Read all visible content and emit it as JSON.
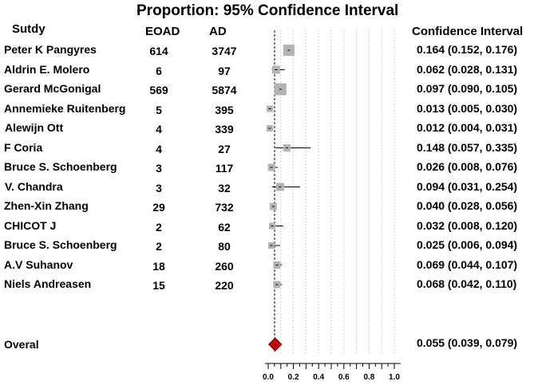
{
  "chart_data": {
    "type": "forest",
    "title": "Proportion: 95% Confidence Interval",
    "columns": {
      "study": "Sutdy",
      "eoad": "EOAD",
      "ad": "AD",
      "ci": "Confidence Interval"
    },
    "x_ticks": [
      "0.0",
      "0.2",
      "0.4",
      "0.6",
      "0.8",
      "1.0"
    ],
    "xlim": [
      0,
      1.0
    ],
    "colors": {
      "box": "#b3b3b3",
      "overall": "#cc0000",
      "ref_line": "#000000"
    },
    "studies": [
      {
        "name": "Peter K Pangyres",
        "eoad": "614",
        "ad": "3747",
        "est": 0.164,
        "lo": 0.152,
        "hi": 0.176,
        "ci_text": "0.164 (0.152, 0.176)"
      },
      {
        "name": "Aldrin E. Molero",
        "eoad": "6",
        "ad": "97",
        "est": 0.062,
        "lo": 0.028,
        "hi": 0.131,
        "ci_text": "0.062 (0.028, 0.131)"
      },
      {
        "name": "Gerard McGonigal",
        "eoad": "569",
        "ad": "5874",
        "est": 0.097,
        "lo": 0.09,
        "hi": 0.105,
        "ci_text": "0.097 (0.090, 0.105)"
      },
      {
        "name": "Annemieke Ruitenberg",
        "eoad": "5",
        "ad": "395",
        "est": 0.013,
        "lo": 0.005,
        "hi": 0.03,
        "ci_text": "0.013 (0.005, 0.030)"
      },
      {
        "name": "Alewijn Ott",
        "eoad": "4",
        "ad": "339",
        "est": 0.012,
        "lo": 0.004,
        "hi": 0.031,
        "ci_text": "0.012 (0.004, 0.031)"
      },
      {
        "name": "F Coria",
        "eoad": "4",
        "ad": "27",
        "est": 0.148,
        "lo": 0.057,
        "hi": 0.335,
        "ci_text": "0.148 (0.057, 0.335)"
      },
      {
        "name": "Bruce S. Schoenberg",
        "eoad": "3",
        "ad": "117",
        "est": 0.026,
        "lo": 0.008,
        "hi": 0.076,
        "ci_text": "0.026 (0.008, 0.076)"
      },
      {
        "name": "V. Chandra",
        "eoad": "3",
        "ad": "32",
        "est": 0.094,
        "lo": 0.031,
        "hi": 0.254,
        "ci_text": "0.094 (0.031, 0.254)"
      },
      {
        "name": "Zhen-Xin Zhang",
        "eoad": "29",
        "ad": "732",
        "est": 0.04,
        "lo": 0.028,
        "hi": 0.056,
        "ci_text": "0.040 (0.028, 0.056)"
      },
      {
        "name": "CHICOT J",
        "eoad": "2",
        "ad": "62",
        "est": 0.032,
        "lo": 0.008,
        "hi": 0.12,
        "ci_text": "0.032 (0.008, 0.120)"
      },
      {
        "name": "Bruce S. Schoenberg",
        "eoad": "2",
        "ad": "80",
        "est": 0.025,
        "lo": 0.006,
        "hi": 0.094,
        "ci_text": "0.025 (0.006, 0.094)"
      },
      {
        "name": "A.V Suhanov",
        "eoad": "18",
        "ad": "260",
        "est": 0.069,
        "lo": 0.044,
        "hi": 0.107,
        "ci_text": "0.069 (0.044, 0.107)"
      },
      {
        "name": "Niels Andreasen",
        "eoad": "15",
        "ad": "220",
        "est": 0.068,
        "lo": 0.042,
        "hi": 0.11,
        "ci_text": "0.068 (0.042, 0.110)"
      }
    ],
    "overall": {
      "name": "Overal",
      "est": 0.055,
      "lo": 0.039,
      "hi": 0.079,
      "ci_text": "0.055 (0.039, 0.079)"
    }
  }
}
